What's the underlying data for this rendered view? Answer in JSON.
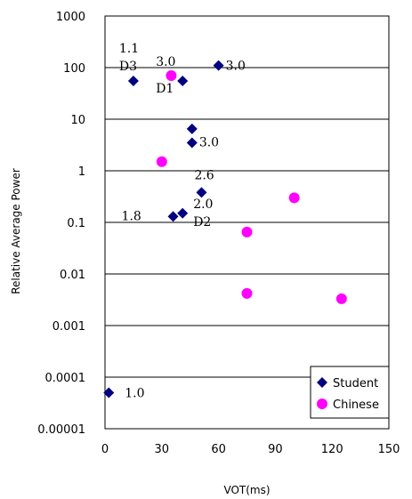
{
  "chart_data": {
    "type": "scatter",
    "title": "",
    "xlabel": "VOT(ms)",
    "ylabel": "Relative Average Power",
    "xlim": [
      0,
      150
    ],
    "ylim": [
      1e-05,
      1000
    ],
    "yscale": "log",
    "grid": "horizontal",
    "legend_position": "bottom-right",
    "x_ticks": [
      "0",
      "30",
      "60",
      "90",
      "120",
      "150"
    ],
    "y_ticks": [
      "1000",
      "100",
      "10",
      "1",
      "0.1",
      "0.01",
      "0.001",
      "0.0001",
      "0.00001"
    ],
    "series": [
      {
        "name": "Student",
        "marker": "diamond",
        "color": "#000080",
        "points": [
          {
            "x": 15,
            "y": 55
          },
          {
            "x": 41,
            "y": 55
          },
          {
            "x": 60,
            "y": 110
          },
          {
            "x": 46,
            "y": 6.5
          },
          {
            "x": 46,
            "y": 3.5
          },
          {
            "x": 51,
            "y": 0.38
          },
          {
            "x": 36,
            "y": 0.13
          },
          {
            "x": 41,
            "y": 0.15
          },
          {
            "x": 2,
            "y": 5e-05
          }
        ]
      },
      {
        "name": "Chinese",
        "marker": "circle",
        "color": "#ff00ff",
        "points": [
          {
            "x": 35,
            "y": 70
          },
          {
            "x": 30,
            "y": 1.5
          },
          {
            "x": 100,
            "y": 0.3
          },
          {
            "x": 75,
            "y": 0.065
          },
          {
            "x": 75,
            "y": 0.0042
          },
          {
            "x": 125,
            "y": 0.0033
          }
        ]
      }
    ],
    "annotations": [
      {
        "text": "1.1",
        "x": 15,
        "y": 55
      },
      {
        "text": "D3",
        "x": 15,
        "y": 55
      },
      {
        "text": "3.0",
        "x": 41,
        "y": 55
      },
      {
        "text": "D1",
        "x": 41,
        "y": 55
      },
      {
        "text": "3.0",
        "x": 60,
        "y": 110
      },
      {
        "text": "3.0",
        "x": 46,
        "y": 3.5
      },
      {
        "text": "2.6",
        "x": 51,
        "y": 0.38
      },
      {
        "text": "1.8",
        "x": 36,
        "y": 0.13
      },
      {
        "text": "2.0",
        "x": 41,
        "y": 0.15
      },
      {
        "text": "D2",
        "x": 41,
        "y": 0.15
      },
      {
        "text": "1.0",
        "x": 2,
        "y": 5e-05
      }
    ]
  }
}
